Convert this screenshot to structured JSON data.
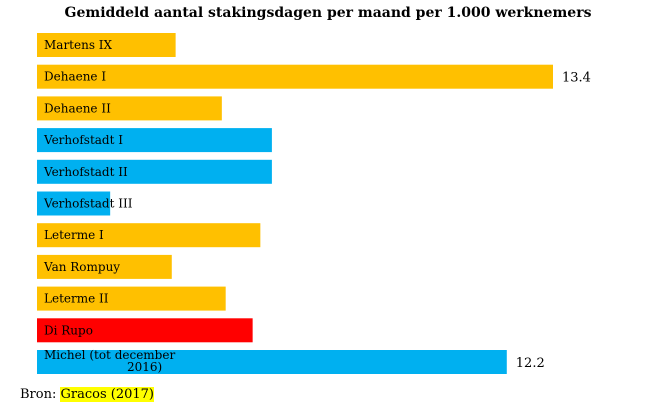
{
  "chart_data": {
    "type": "bar",
    "orientation": "horizontal",
    "title": "Gemiddeld aantal stakingsdagen per maand per 1.000 werknemers",
    "categories": [
      [
        "Martens IX"
      ],
      [
        "Dehaene I"
      ],
      [
        "Dehaene II"
      ],
      [
        "Verhofstadt I"
      ],
      [
        "Verhofstadt II"
      ],
      [
        "Verhofstadt III"
      ],
      [
        "Leterme I"
      ],
      [
        "Van Rompuy"
      ],
      [
        "Leterme II"
      ],
      [
        "Di Rupo"
      ],
      [
        "Michel (tot december",
        "2016)"
      ]
    ],
    "values": [
      3.6,
      13.4,
      4.8,
      6.1,
      6.1,
      1.9,
      5.8,
      3.5,
      4.9,
      5.6,
      12.2
    ],
    "value_labels": [
      "",
      "13.4",
      "",
      "",
      "",
      "",
      "",
      "",
      "",
      "",
      "12.2"
    ],
    "colors": [
      "#ffc000",
      "#ffc000",
      "#ffc000",
      "#00b0f0",
      "#00b0f0",
      "#00b0f0",
      "#ffc000",
      "#ffc000",
      "#ffc000",
      "#ff0000",
      "#00b0f0"
    ],
    "xlim": [
      0,
      13.4
    ],
    "grid": false,
    "legend": "none"
  },
  "source": {
    "prefix": "Bron: ",
    "reference": "Gracos (2017)"
  }
}
